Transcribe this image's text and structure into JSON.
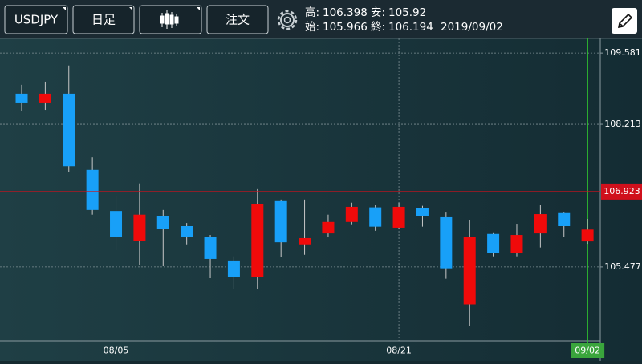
{
  "header": {
    "symbol": "USDJPY",
    "timeframe": "日足",
    "order": "注文",
    "high_label": "高:",
    "low_label": "安:",
    "open_label": "始:",
    "close_label": "終:",
    "date": "2019/09/02"
  },
  "chart_data": {
    "type": "candlestick",
    "categories": [
      null,
      null,
      null,
      null,
      "08/05",
      null,
      null,
      null,
      null,
      null,
      null,
      null,
      null,
      null,
      null,
      null,
      "08/21",
      null,
      null,
      null,
      null,
      null,
      null,
      null,
      "09/02"
    ],
    "open": [
      108.8,
      108.63,
      108.8,
      107.34,
      106.55,
      105.97,
      106.46,
      106.26,
      106.06,
      105.6,
      105.29,
      106.74,
      105.91,
      106.12,
      106.34,
      106.62,
      106.23,
      106.6,
      106.43,
      104.76,
      106.11,
      105.74,
      106.12,
      106.51,
      105.966
    ],
    "high": [
      108.97,
      109.03,
      109.34,
      107.58,
      106.83,
      107.08,
      106.57,
      106.32,
      106.09,
      105.68,
      106.97,
      106.77,
      106.77,
      106.48,
      106.71,
      106.66,
      106.71,
      106.65,
      106.52,
      106.37,
      106.14,
      106.29,
      106.66,
      106.52,
      106.398
    ],
    "low": [
      108.47,
      108.49,
      107.29,
      106.48,
      105.8,
      105.52,
      105.49,
      105.91,
      105.26,
      105.05,
      105.06,
      105.66,
      105.71,
      106.05,
      106.28,
      106.17,
      106.2,
      106.25,
      105.25,
      104.34,
      105.68,
      105.68,
      105.85,
      106.05,
      105.92
    ],
    "close": [
      108.63,
      108.8,
      107.41,
      106.57,
      106.05,
      106.48,
      106.2,
      106.06,
      105.63,
      105.29,
      106.69,
      105.95,
      106.03,
      106.34,
      106.63,
      106.25,
      106.63,
      106.45,
      105.45,
      106.06,
      105.74,
      106.09,
      106.49,
      106.26,
      106.194
    ],
    "up_color": "#f00a0a",
    "down_color": "#18a0f8",
    "ylim": [
      104.06,
      109.86
    ],
    "yticks": [
      105.477,
      108.213,
      109.581
    ],
    "grid": true,
    "current_price": 106.923,
    "current_color": "#d0101c"
  }
}
